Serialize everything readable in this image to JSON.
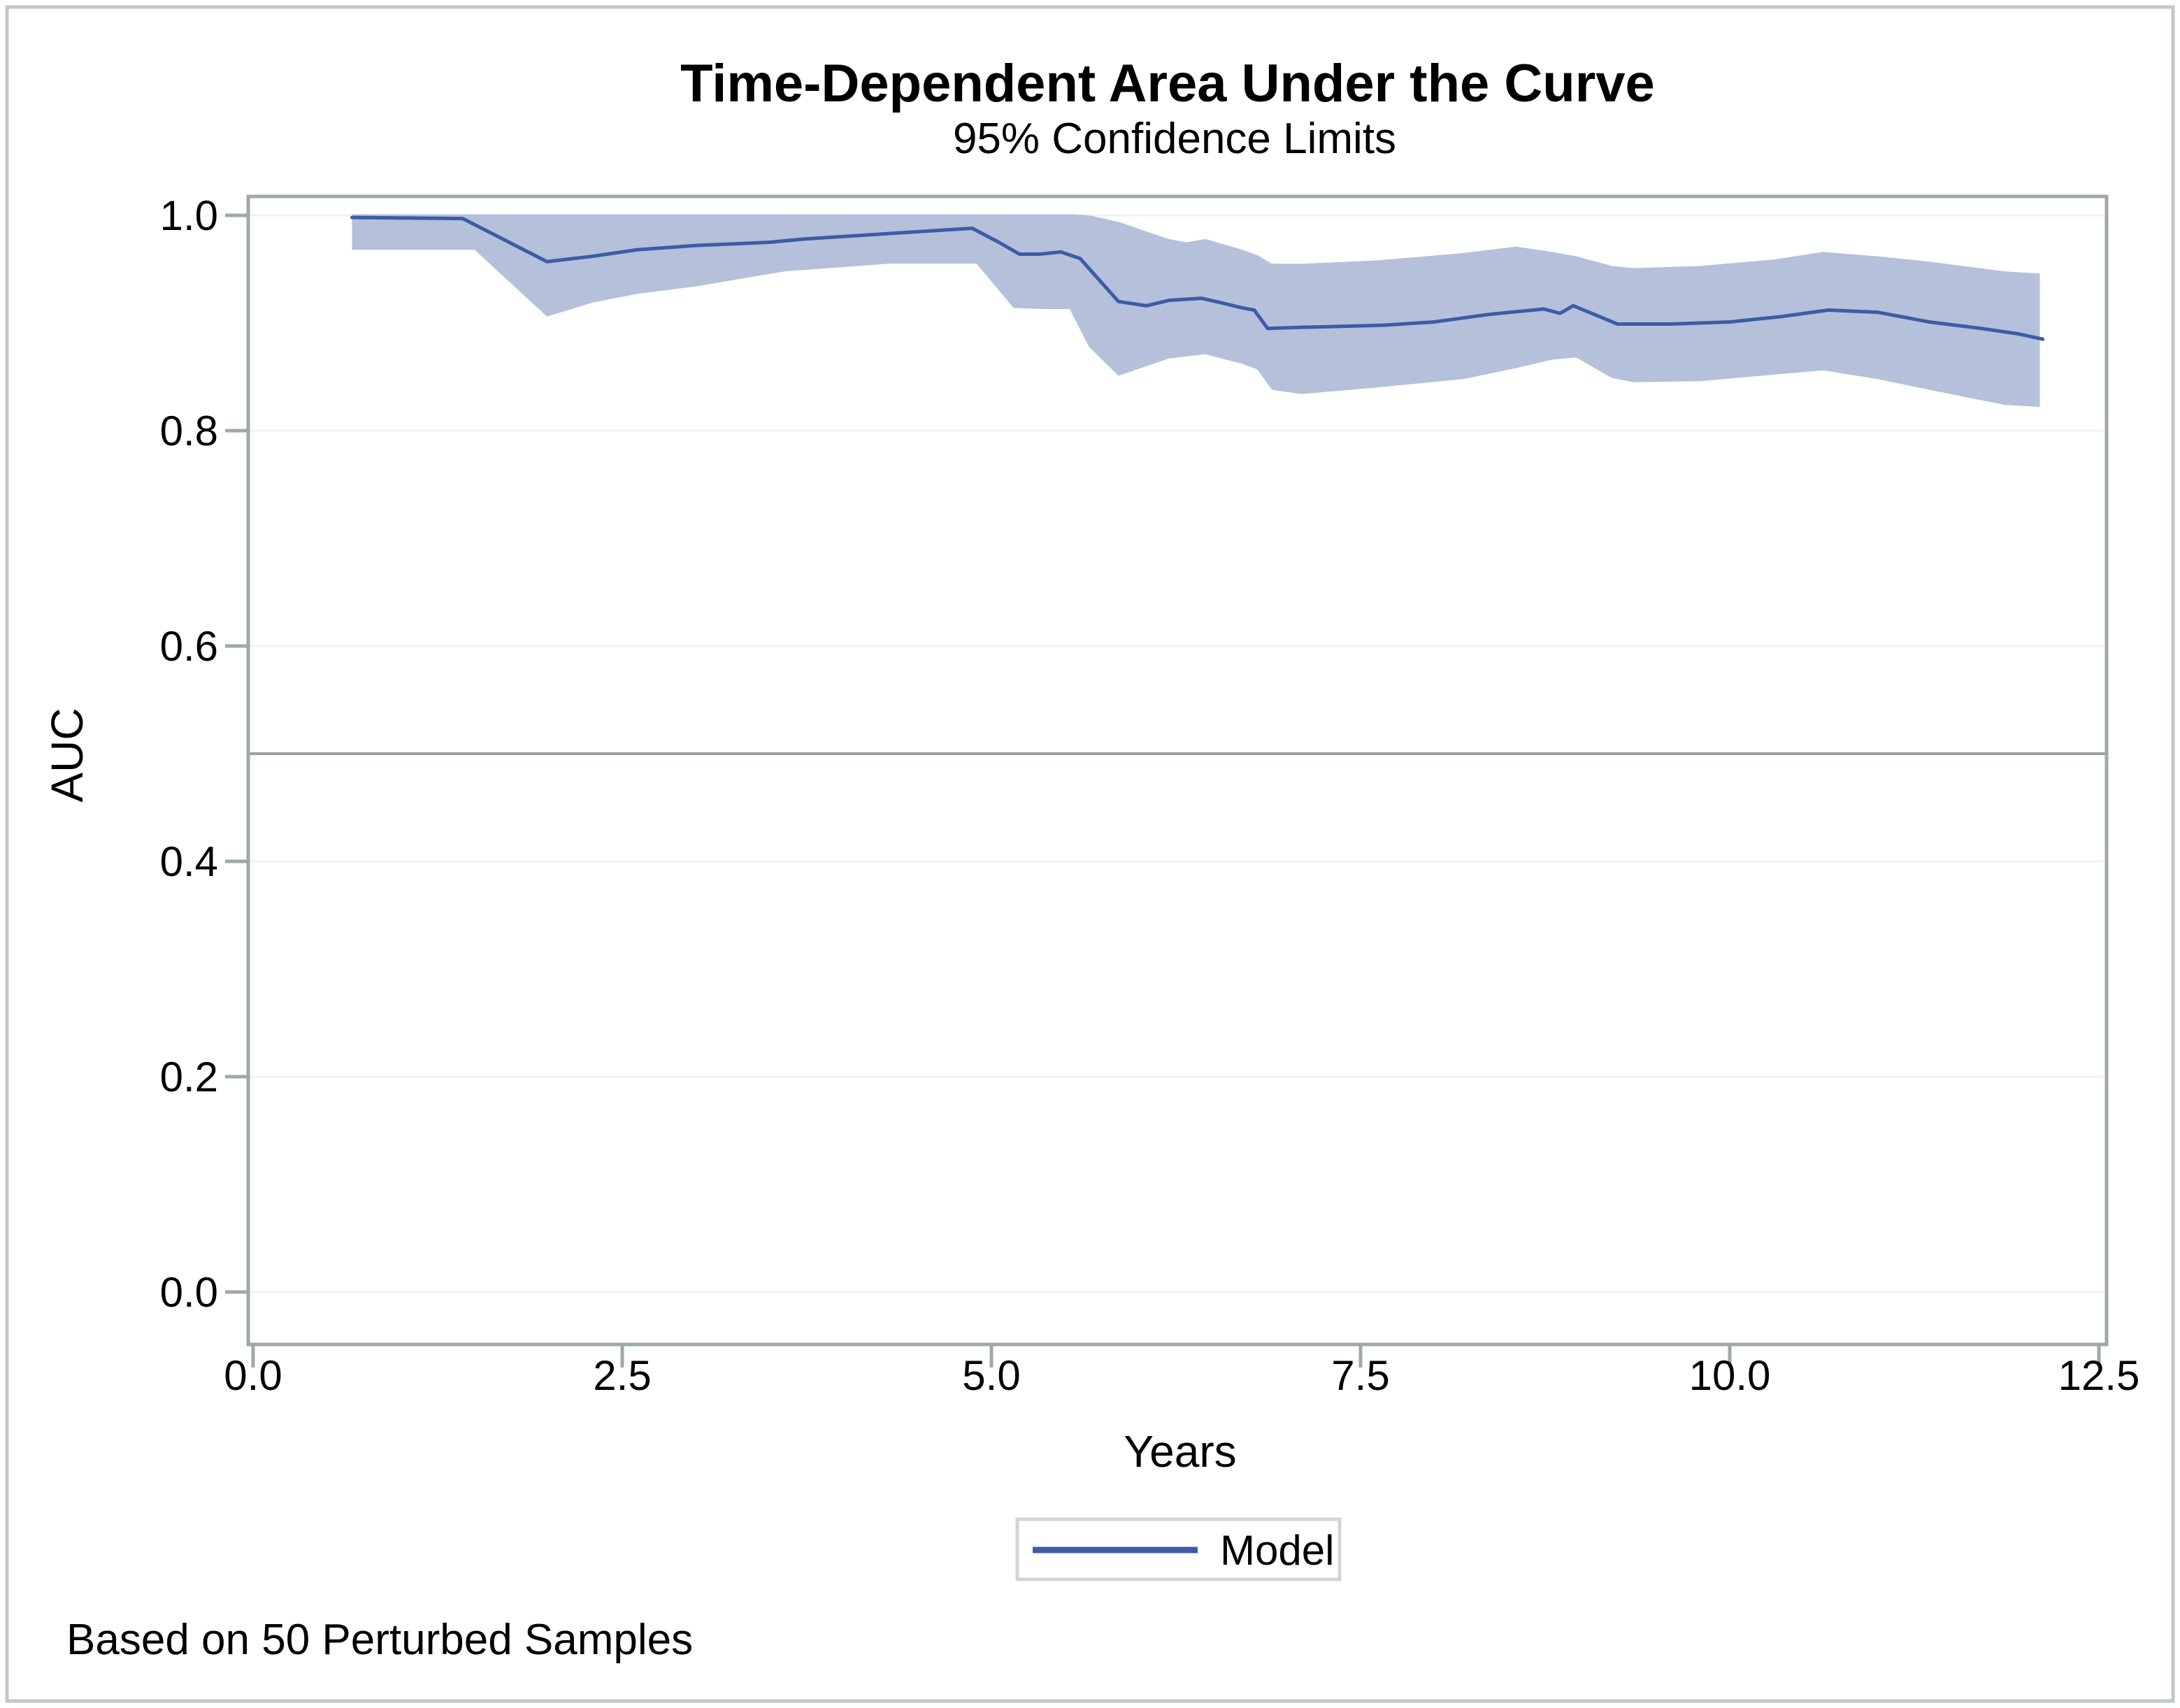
{
  "figure": {
    "title": "Time-Dependent Area Under the Curve",
    "subtitle": "95% Confidence Limits",
    "footnote": "Based on 50 Perturbed Samples",
    "legend": {
      "items": [
        {
          "label": "Model",
          "swatch": "line"
        }
      ]
    }
  },
  "chart_data": {
    "type": "line",
    "title": "Time-Dependent Area Under the Curve",
    "subtitle": "95% Confidence Limits",
    "xlabel": "Years",
    "ylabel": "AUC",
    "xlim": [
      0,
      12.5
    ],
    "ylim": [
      0.0,
      1.0
    ],
    "grid": "horizontal",
    "legend_position": "bottom",
    "footnote": "Based on 50 Perturbed Samples",
    "xticks": [
      {
        "label": "0.0",
        "value": 0
      },
      {
        "label": "2.5",
        "value": 2.5
      },
      {
        "label": "5.0",
        "value": 5.0
      },
      {
        "label": "7.5",
        "value": 7.5
      },
      {
        "label": "10.0",
        "value": 10.0
      },
      {
        "label": "12.5",
        "value": 12.5
      }
    ],
    "yticks": [
      {
        "label": "0.0",
        "value": 0.0
      },
      {
        "label": "0.2",
        "value": 0.2
      },
      {
        "label": "0.4",
        "value": 0.4
      },
      {
        "label": "0.6",
        "value": 0.6
      },
      {
        "label": "0.8",
        "value": 0.8
      },
      {
        "label": "1.0",
        "value": 1.0
      }
    ],
    "reference_line": {
      "y": 0.5
    },
    "series": [
      {
        "name": "Model",
        "color": "#3d5ca6",
        "x": [
          0.67,
          1.42,
          1.99,
          2.3,
          2.6,
          3.0,
          3.5,
          3.73,
          4.41,
          4.87,
          5.05,
          5.19,
          5.33,
          5.47,
          5.6,
          5.86,
          6.05,
          6.2,
          6.42,
          6.55,
          6.7,
          6.78,
          6.87,
          7.1,
          7.4,
          7.66,
          8.0,
          8.37,
          8.74,
          8.85,
          8.94,
          9.1,
          9.24,
          9.6,
          10.0,
          10.35,
          10.67,
          11.0,
          11.35,
          11.7,
          11.95,
          12.12
        ],
        "y": [
          0.998,
          0.997,
          0.957,
          0.962,
          0.968,
          0.972,
          0.975,
          0.978,
          0.984,
          0.988,
          0.975,
          0.964,
          0.964,
          0.966,
          0.96,
          0.92,
          0.916,
          0.921,
          0.923,
          0.919,
          0.914,
          0.912,
          0.895,
          0.896,
          0.897,
          0.898,
          0.901,
          0.908,
          0.913,
          0.909,
          0.916,
          0.907,
          0.899,
          0.899,
          0.901,
          0.906,
          0.912,
          0.91,
          0.901,
          0.895,
          0.89,
          0.885
        ]
      }
    ],
    "confidence_band": {
      "label": "95% Confidence Limits",
      "color": "#b5c0da",
      "x": [
        0.67,
        1.5,
        1.99,
        2.3,
        2.6,
        3.0,
        3.6,
        4.3,
        4.9,
        5.15,
        5.35,
        5.53,
        5.66,
        5.86,
        6.2,
        6.32,
        6.45,
        6.7,
        6.8,
        6.9,
        7.1,
        7.6,
        8.2,
        8.55,
        8.8,
        8.96,
        9.2,
        9.35,
        9.8,
        10.3,
        10.63,
        11.0,
        11.35,
        11.86,
        12.1
      ],
      "upper": [
        1.001,
        1.001,
        1.001,
        1.001,
        1.001,
        1.001,
        1.001,
        1.001,
        1.001,
        1.001,
        1.001,
        1.001,
        1.0,
        0.994,
        0.978,
        0.975,
        0.978,
        0.968,
        0.963,
        0.955,
        0.955,
        0.958,
        0.965,
        0.971,
        0.966,
        0.962,
        0.953,
        0.951,
        0.953,
        0.959,
        0.966,
        0.962,
        0.957,
        0.948,
        0.946
      ],
      "lower": [
        0.968,
        0.968,
        0.906,
        0.919,
        0.927,
        0.934,
        0.948,
        0.955,
        0.955,
        0.914,
        0.913,
        0.913,
        0.878,
        0.851,
        0.867,
        0.869,
        0.871,
        0.862,
        0.857,
        0.838,
        0.834,
        0.84,
        0.848,
        0.858,
        0.866,
        0.868,
        0.849,
        0.845,
        0.846,
        0.852,
        0.856,
        0.848,
        0.838,
        0.824,
        0.822
      ]
    }
  },
  "colors": {
    "line": "#3d5ca6",
    "band": "#b5c0da",
    "frame": "#9fa8a8",
    "grid": "#f0f2f2",
    "reference": "#9aa2a4",
    "tick": "#9fa8a8",
    "legend_border": "#d4d4d4",
    "figure_border": "#c2c8c8",
    "text": "#000000"
  }
}
